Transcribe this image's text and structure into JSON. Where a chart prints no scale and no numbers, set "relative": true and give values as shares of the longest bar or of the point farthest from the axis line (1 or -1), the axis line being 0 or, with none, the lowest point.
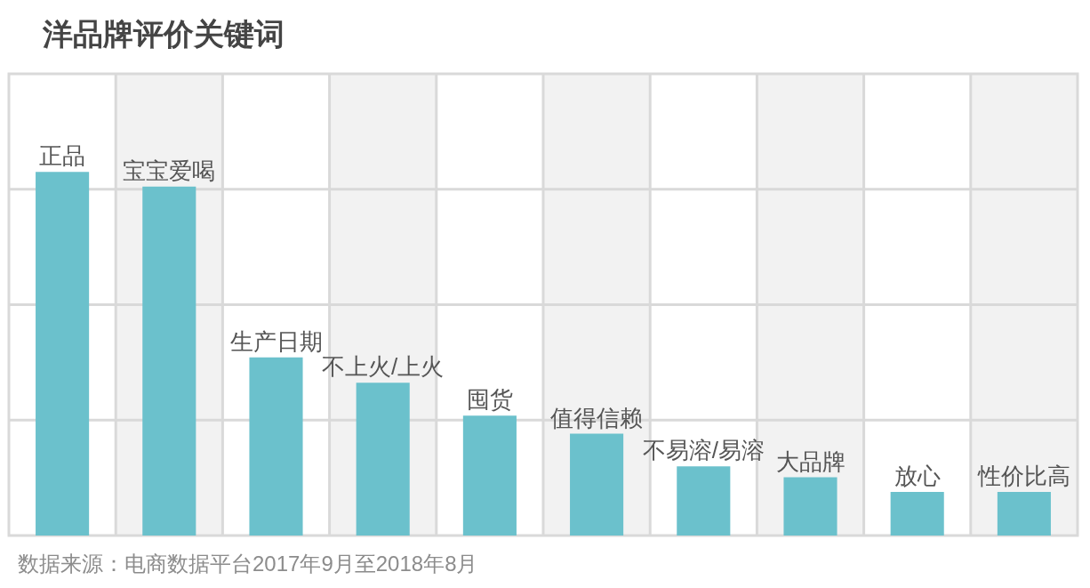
{
  "chart_data": {
    "type": "bar",
    "title": "洋品牌评价关键词",
    "categories": [
      "正品",
      "宝宝爱喝",
      "生产日期",
      "不上火/上火",
      "囤货",
      "值得信赖",
      "不易溶/易溶",
      "大品牌",
      "放心",
      "性价比高"
    ],
    "values": [
      1,
      0.96,
      0.49,
      0.42,
      0.33,
      0.28,
      0.19,
      0.16,
      0.12,
      0.12
    ],
    "color": "#6bc1cc",
    "relative": true,
    "grid": true,
    "annotations": [
      "数据来源：电商数据平台2017年9月至2018年8月"
    ]
  }
}
